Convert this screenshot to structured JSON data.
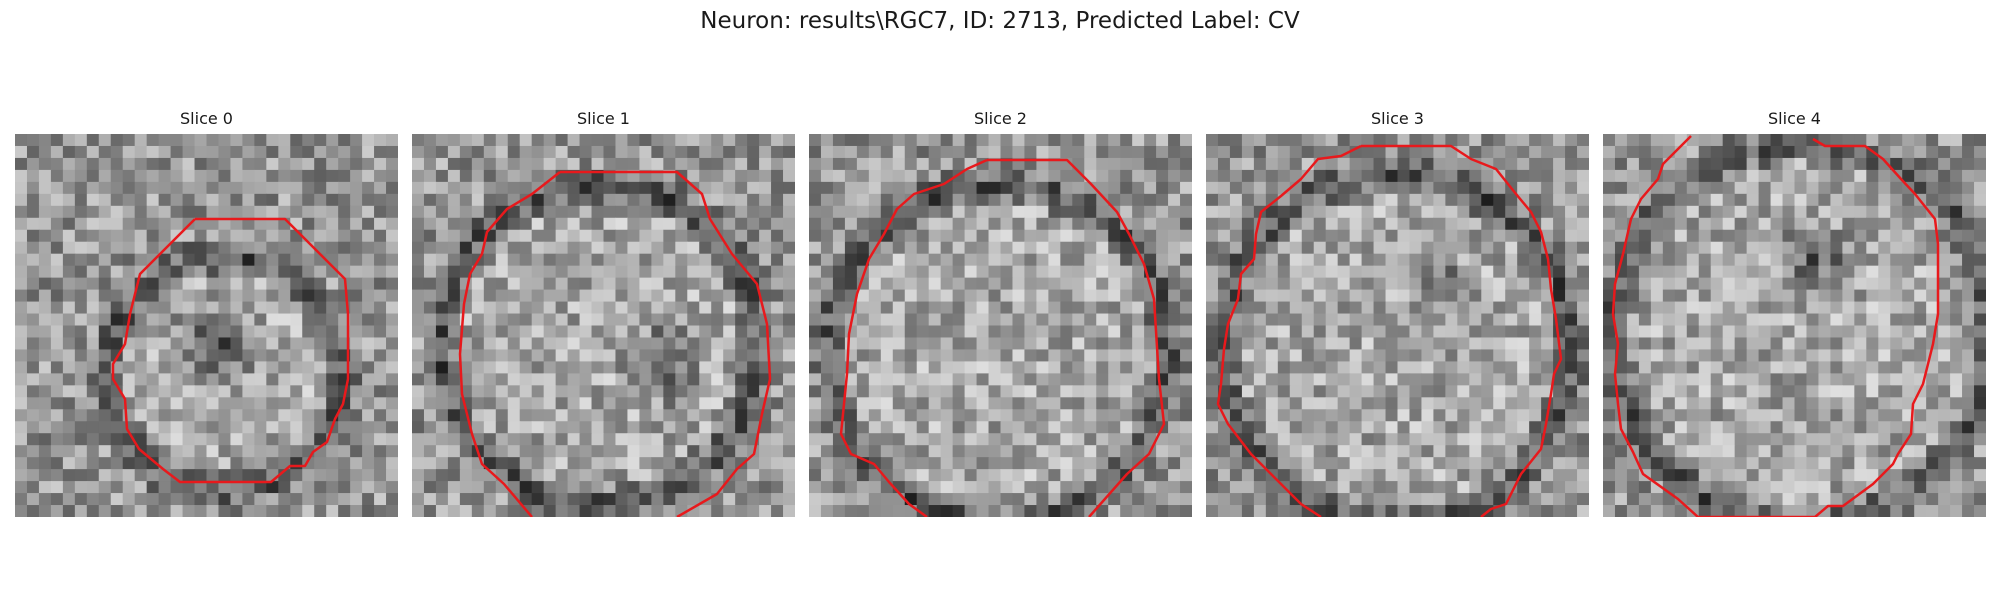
{
  "figure": {
    "title": "Neuron: results\\RGC7, ID: 2713, Predicted Label: CV",
    "contour_color": "#e8191c",
    "panels": [
      {
        "title": "Slice 0"
      },
      {
        "title": "Slice 1"
      },
      {
        "title": "Slice 2"
      },
      {
        "title": "Slice 3"
      },
      {
        "title": "Slice 4"
      }
    ]
  }
}
